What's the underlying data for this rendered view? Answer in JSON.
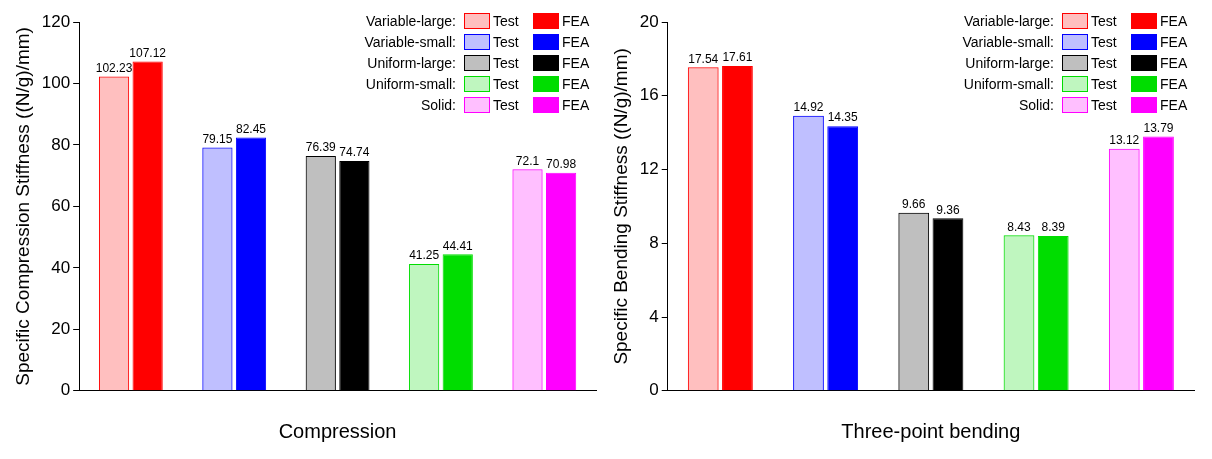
{
  "chart_data": [
    {
      "type": "bar",
      "xlabel": "Compression",
      "ylabel": "Specific Compression Stiffness ((N/g)/mm)",
      "categories": [
        null,
        null,
        null,
        null,
        null
      ],
      "annotations": [
        "Variable-large:",
        "Variable-small:",
        "Uniform-large:",
        "Uniform-small:",
        "Solid:"
      ],
      "legend": "top right",
      "data_labels": true,
      "grid": false,
      "ylim": [
        0,
        120
      ],
      "yticks": [
        0,
        20,
        40,
        60,
        80,
        100,
        120
      ],
      "series": [
        {
          "name": "Test",
          "colors": [
            "#ff0000",
            "#0000ff",
            "#000000",
            "#00dd00",
            "#ff00ff"
          ],
          "values": [
            102.23,
            79.15,
            76.39,
            41.25,
            72.1
          ]
        },
        {
          "name": "FEA",
          "colors": [
            "#ff0000",
            "#0000ff",
            "#000000",
            "#00dd00",
            "#ff00ff"
          ],
          "values": [
            107.12,
            82.45,
            74.74,
            44.41,
            70.98
          ]
        }
      ]
    },
    {
      "type": "bar",
      "xlabel": "Three-point bending",
      "ylabel": "Specific Bending Stiffness ((N/g)/mm)",
      "categories": [
        null,
        null,
        null,
        null,
        null
      ],
      "annotations": [
        "Variable-large:",
        "Variable-small:",
        "Uniform-large:",
        "Uniform-small:",
        "Solid:"
      ],
      "legend": "top right",
      "data_labels": true,
      "grid": false,
      "ylim": [
        0,
        20
      ],
      "yticks": [
        0,
        4,
        8,
        12,
        16,
        20
      ],
      "series": [
        {
          "name": "Test",
          "colors": [
            "#ff0000",
            "#0000ff",
            "#000000",
            "#00dd00",
            "#ff00ff"
          ],
          "values": [
            17.54,
            14.92,
            9.66,
            8.43,
            13.12
          ]
        },
        {
          "name": "FEA",
          "colors": [
            "#ff0000",
            "#0000ff",
            "#000000",
            "#00dd00",
            "#ff00ff"
          ],
          "values": [
            17.61,
            14.35,
            9.36,
            8.39,
            13.79
          ]
        }
      ]
    }
  ]
}
